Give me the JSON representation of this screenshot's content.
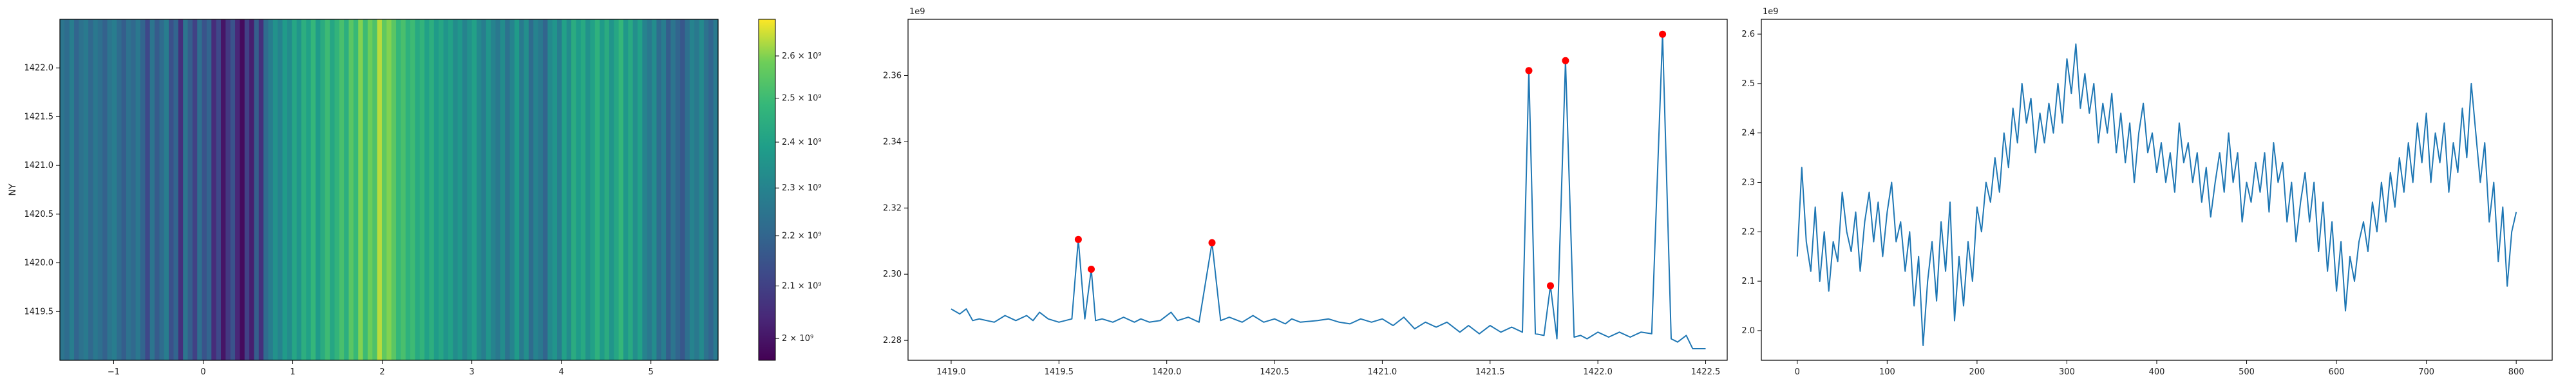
{
  "chart_data": [
    {
      "type": "heatmap",
      "title": "",
      "xlabel": "",
      "ylabel": "NY",
      "xlim": [
        -1.6,
        5.75
      ],
      "ylim": [
        1419.0,
        1422.5
      ],
      "x_ticks": [
        -1,
        0,
        1,
        2,
        3,
        4,
        5
      ],
      "x_tick_labels": [
        "−1",
        "0",
        "1",
        "2",
        "3",
        "4",
        "5"
      ],
      "y_ticks": [
        1419.5,
        1420.0,
        1420.5,
        1421.0,
        1421.5,
        1422.0
      ],
      "y_tick_labels": [
        "1419.5",
        "1420.0",
        "1420.5",
        "1421.0",
        "1421.5",
        "1422.0"
      ],
      "colormap": "viridis",
      "value_range": [
        1960000000.0,
        2690000000.0
      ],
      "colorbar": {
        "ticks": [
          2000000000.0,
          2100000000.0,
          2200000000.0,
          2300000000.0,
          2400000000.0,
          2500000000.0,
          2600000000.0
        ],
        "tick_labels": [
          "2 × 10⁹",
          "2.1 × 10⁹",
          "2.2 × 10⁹",
          "2.3 × 10⁹",
          "2.4 × 10⁹",
          "2.5 × 10⁹",
          "2.6 × 10⁹"
        ],
        "scale": "log"
      },
      "column_values": [
        2250000000.0,
        2220000000.0,
        2280000000.0,
        2200000000.0,
        2240000000.0,
        2270000000.0,
        2210000000.0,
        2260000000.0,
        2230000000.0,
        2190000000.0,
        2250000000.0,
        2280000000.0,
        2220000000.0,
        2180000000.0,
        2240000000.0,
        2210000000.0,
        2260000000.0,
        2200000000.0,
        2120000000.0,
        2250000000.0,
        2170000000.0,
        2220000000.0,
        2280000000.0,
        2140000000.0,
        2200000000.0,
        2060000000.0,
        2250000000.0,
        2180000000.0,
        2100000000.0,
        2230000000.0,
        2150000000.0,
        2200000000.0,
        2050000000.0,
        2120000000.0,
        2000000000.0,
        2080000000.0,
        2150000000.0,
        2040000000.0,
        1980000000.0,
        2100000000.0,
        2020000000.0,
        2180000000.0,
        2060000000.0,
        2220000000.0,
        2280000000.0,
        2350000000.0,
        2300000000.0,
        2380000000.0,
        2330000000.0,
        2420000000.0,
        2360000000.0,
        2450000000.0,
        2400000000.0,
        2480000000.0,
        2380000000.0,
        2440000000.0,
        2500000000.0,
        2420000000.0,
        2470000000.0,
        2520000000.0,
        2450000000.0,
        2550000000.0,
        2490000000.0,
        2600000000.0,
        2500000000.0,
        2580000000.0,
        2530000000.0,
        2640000000.0,
        2560000000.0,
        2600000000.0,
        2550000000.0,
        2480000000.0,
        2520000000.0,
        2460000000.0,
        2500000000.0,
        2430000000.0,
        2470000000.0,
        2400000000.0,
        2450000000.0,
        2380000000.0,
        2420000000.0,
        2360000000.0,
        2400000000.0,
        2330000000.0,
        2370000000.0,
        2300000000.0,
        2350000000.0,
        2400000000.0,
        2320000000.0,
        2280000000.0,
        2360000000.0,
        2300000000.0,
        2260000000.0,
        2330000000.0,
        2240000000.0,
        2300000000.0,
        2380000000.0,
        2270000000.0,
        2340000000.0,
        2220000000.0,
        2300000000.0,
        2260000000.0,
        2200000000.0,
        2320000000.0,
        2360000000.0,
        2280000000.0,
        2400000000.0,
        2330000000.0,
        2440000000.0,
        2380000000.0,
        2430000000.0,
        2350000000.0,
        2400000000.0,
        2460000000.0,
        2380000000.0,
        2440000000.0,
        2360000000.0,
        2420000000.0,
        2480000000.0,
        2370000000.0,
        2430000000.0,
        2340000000.0,
        2400000000.0,
        2300000000.0,
        2260000000.0,
        2330000000.0,
        2220000000.0,
        2280000000.0,
        2180000000.0,
        2250000000.0,
        2200000000.0,
        2160000000.0,
        2230000000.0,
        2300000000.0,
        2260000000.0,
        2320000000.0,
        2240000000.0,
        2200000000.0,
        2270000000.0
      ]
    },
    {
      "type": "line",
      "title": "",
      "xlabel": "",
      "ylabel": "",
      "offset_label": "1e9",
      "xlim": [
        1418.8,
        1422.6
      ],
      "ylim": [
        2274000000.0,
        2377000000.0
      ],
      "x_ticks": [
        1419.0,
        1419.5,
        1420.0,
        1420.5,
        1421.0,
        1421.5,
        1422.0,
        1422.5
      ],
      "x_tick_labels": [
        "1419.0",
        "1419.5",
        "1420.0",
        "1420.5",
        "1421.0",
        "1421.5",
        "1422.0",
        "1422.5"
      ],
      "y_ticks": [
        2280000000.0,
        2300000000.0,
        2320000000.0,
        2340000000.0,
        2360000000.0
      ],
      "y_tick_labels": [
        "2.28",
        "2.30",
        "2.32",
        "2.34",
        "2.36"
      ],
      "line_color": "#1f77b4",
      "series": [
        {
          "x": [
            1419.0,
            1419.04,
            1419.07,
            1419.1,
            1419.13,
            1419.2,
            1419.25,
            1419.3,
            1419.35,
            1419.38,
            1419.41,
            1419.45,
            1419.5,
            1419.56,
            1419.59,
            1419.62,
            1419.65,
            1419.67,
            1419.7,
            1419.75,
            1419.8,
            1419.85,
            1419.88,
            1419.92,
            1419.97,
            1420.02,
            1420.05,
            1420.1,
            1420.15,
            1420.21,
            1420.25,
            1420.29,
            1420.35,
            1420.4,
            1420.45,
            1420.5,
            1420.55,
            1420.58,
            1420.62,
            1420.7,
            1420.75,
            1420.8,
            1420.85,
            1420.9,
            1420.95,
            1421.0,
            1421.05,
            1421.1,
            1421.15,
            1421.2,
            1421.25,
            1421.3,
            1421.36,
            1421.4,
            1421.45,
            1421.5,
            1421.55,
            1421.6,
            1421.65,
            1421.68,
            1421.71,
            1421.75,
            1421.78,
            1421.81,
            1421.85,
            1421.89,
            1421.92,
            1421.95,
            1422.0,
            1422.05,
            1422.1,
            1422.15,
            1422.2,
            1422.25,
            1422.3,
            1422.34,
            1422.37,
            1422.41,
            1422.44,
            1422.47,
            1422.5
          ],
          "y": [
            2289500000.0,
            2288000000.0,
            2289500000.0,
            2286000000.0,
            2286500000.0,
            2285500000.0,
            2287500000.0,
            2286000000.0,
            2287500000.0,
            2286000000.0,
            2288500000.0,
            2286500000.0,
            2285500000.0,
            2286500000.0,
            2310500000.0,
            2286500000.0,
            2301500000.0,
            2286000000.0,
            2286500000.0,
            2285500000.0,
            2287000000.0,
            2285500000.0,
            2286500000.0,
            2285500000.0,
            2286000000.0,
            2288500000.0,
            2286000000.0,
            2287000000.0,
            2285500000.0,
            2309500000.0,
            2286000000.0,
            2287000000.0,
            2285500000.0,
            2287500000.0,
            2285500000.0,
            2286500000.0,
            2285000000.0,
            2286500000.0,
            2285500000.0,
            2286000000.0,
            2286500000.0,
            2285500000.0,
            2285000000.0,
            2286500000.0,
            2285500000.0,
            2286500000.0,
            2284500000.0,
            2287000000.0,
            2283500000.0,
            2285500000.0,
            2284000000.0,
            2285500000.0,
            2282500000.0,
            2284500000.0,
            2282000000.0,
            2284500000.0,
            2282500000.0,
            2284000000.0,
            2282500000.0,
            2361500000.0,
            2282000000.0,
            2281500000.0,
            2296500000.0,
            2280500000.0,
            2364500000.0,
            2281000000.0,
            2281500000.0,
            2280500000.0,
            2282500000.0,
            2281000000.0,
            2282500000.0,
            2281000000.0,
            2282500000.0,
            2282000000.0,
            2372500000.0,
            2280500000.0,
            2279500000.0,
            2281500000.0,
            2277500000.0,
            2277500000.0,
            2277500000.0
          ]
        }
      ],
      "peaks": {
        "marker_color": "#ff0000",
        "x": [
          1419.59,
          1419.65,
          1420.21,
          1421.68,
          1421.78,
          1421.85,
          1422.3
        ],
        "y": [
          2310500000.0,
          2301500000.0,
          2309500000.0,
          2361500000.0,
          2296500000.0,
          2364500000.0,
          2372500000.0
        ]
      }
    },
    {
      "type": "line",
      "title": "",
      "xlabel": "",
      "ylabel": "",
      "offset_label": "1e9",
      "xlim": [
        -40,
        840
      ],
      "ylim": [
        1940000000.0,
        2630000000.0
      ],
      "x_ticks": [
        0,
        100,
        200,
        300,
        400,
        500,
        600,
        700,
        800
      ],
      "x_tick_labels": [
        "0",
        "100",
        "200",
        "300",
        "400",
        "500",
        "600",
        "700",
        "800"
      ],
      "y_ticks": [
        2000000000.0,
        2100000000.0,
        2200000000.0,
        2300000000.0,
        2400000000.0,
        2500000000.0,
        2600000000.0
      ],
      "y_tick_labels": [
        "2.0",
        "2.1",
        "2.2",
        "2.3",
        "2.4",
        "2.5",
        "2.6"
      ],
      "line_color": "#1f77b4",
      "series": [
        {
          "x": [
            0,
            5,
            10,
            15,
            20,
            25,
            30,
            35,
            40,
            45,
            50,
            55,
            60,
            65,
            70,
            75,
            80,
            85,
            90,
            95,
            100,
            105,
            110,
            115,
            120,
            125,
            130,
            135,
            140,
            145,
            150,
            155,
            160,
            165,
            170,
            175,
            180,
            185,
            190,
            195,
            200,
            205,
            210,
            215,
            220,
            225,
            230,
            235,
            240,
            245,
            250,
            255,
            260,
            265,
            270,
            275,
            280,
            285,
            290,
            295,
            300,
            305,
            310,
            315,
            320,
            325,
            330,
            335,
            340,
            345,
            350,
            355,
            360,
            365,
            370,
            375,
            380,
            385,
            390,
            395,
            400,
            405,
            410,
            415,
            420,
            425,
            430,
            435,
            440,
            445,
            450,
            455,
            460,
            465,
            470,
            475,
            480,
            485,
            490,
            495,
            500,
            505,
            510,
            515,
            520,
            525,
            530,
            535,
            540,
            545,
            550,
            555,
            560,
            565,
            570,
            575,
            580,
            585,
            590,
            595,
            600,
            605,
            610,
            615,
            620,
            625,
            630,
            635,
            640,
            645,
            650,
            655,
            660,
            665,
            670,
            675,
            680,
            685,
            690,
            695,
            700,
            705,
            710,
            715,
            720,
            725,
            730,
            735,
            740,
            745,
            750,
            755,
            760,
            765,
            770,
            775,
            780,
            785,
            790,
            795,
            800
          ],
          "y": [
            2150000000.0,
            2330000000.0,
            2180000000.0,
            2120000000.0,
            2250000000.0,
            2100000000.0,
            2200000000.0,
            2080000000.0,
            2180000000.0,
            2140000000.0,
            2280000000.0,
            2200000000.0,
            2160000000.0,
            2240000000.0,
            2120000000.0,
            2220000000.0,
            2280000000.0,
            2180000000.0,
            2260000000.0,
            2150000000.0,
            2240000000.0,
            2300000000.0,
            2180000000.0,
            2220000000.0,
            2120000000.0,
            2200000000.0,
            2050000000.0,
            2150000000.0,
            1970000000.0,
            2100000000.0,
            2180000000.0,
            2060000000.0,
            2220000000.0,
            2120000000.0,
            2260000000.0,
            2020000000.0,
            2150000000.0,
            2050000000.0,
            2180000000.0,
            2100000000.0,
            2250000000.0,
            2200000000.0,
            2300000000.0,
            2260000000.0,
            2350000000.0,
            2280000000.0,
            2400000000.0,
            2330000000.0,
            2450000000.0,
            2380000000.0,
            2500000000.0,
            2420000000.0,
            2470000000.0,
            2360000000.0,
            2440000000.0,
            2380000000.0,
            2460000000.0,
            2400000000.0,
            2500000000.0,
            2420000000.0,
            2550000000.0,
            2480000000.0,
            2580000000.0,
            2450000000.0,
            2520000000.0,
            2440000000.0,
            2500000000.0,
            2380000000.0,
            2460000000.0,
            2400000000.0,
            2480000000.0,
            2360000000.0,
            2440000000.0,
            2340000000.0,
            2420000000.0,
            2300000000.0,
            2400000000.0,
            2460000000.0,
            2360000000.0,
            2400000000.0,
            2320000000.0,
            2380000000.0,
            2300000000.0,
            2360000000.0,
            2280000000.0,
            2420000000.0,
            2340000000.0,
            2380000000.0,
            2300000000.0,
            2360000000.0,
            2260000000.0,
            2330000000.0,
            2230000000.0,
            2300000000.0,
            2360000000.0,
            2280000000.0,
            2400000000.0,
            2300000000.0,
            2360000000.0,
            2220000000.0,
            2300000000.0,
            2260000000.0,
            2340000000.0,
            2280000000.0,
            2360000000.0,
            2240000000.0,
            2380000000.0,
            2300000000.0,
            2340000000.0,
            2220000000.0,
            2300000000.0,
            2180000000.0,
            2260000000.0,
            2320000000.0,
            2220000000.0,
            2300000000.0,
            2160000000.0,
            2260000000.0,
            2120000000.0,
            2220000000.0,
            2080000000.0,
            2180000000.0,
            2040000000.0,
            2150000000.0,
            2100000000.0,
            2180000000.0,
            2220000000.0,
            2160000000.0,
            2260000000.0,
            2200000000.0,
            2300000000.0,
            2220000000.0,
            2320000000.0,
            2250000000.0,
            2350000000.0,
            2280000000.0,
            2380000000.0,
            2300000000.0,
            2420000000.0,
            2340000000.0,
            2440000000.0,
            2300000000.0,
            2400000000.0,
            2340000000.0,
            2420000000.0,
            2280000000.0,
            2380000000.0,
            2320000000.0,
            2450000000.0,
            2350000000.0,
            2500000000.0,
            2400000000.0,
            2300000000.0,
            2380000000.0,
            2220000000.0,
            2300000000.0,
            2140000000.0,
            2250000000.0,
            2090000000.0,
            2200000000.0,
            2240000000.0
          ]
        }
      ]
    }
  ]
}
